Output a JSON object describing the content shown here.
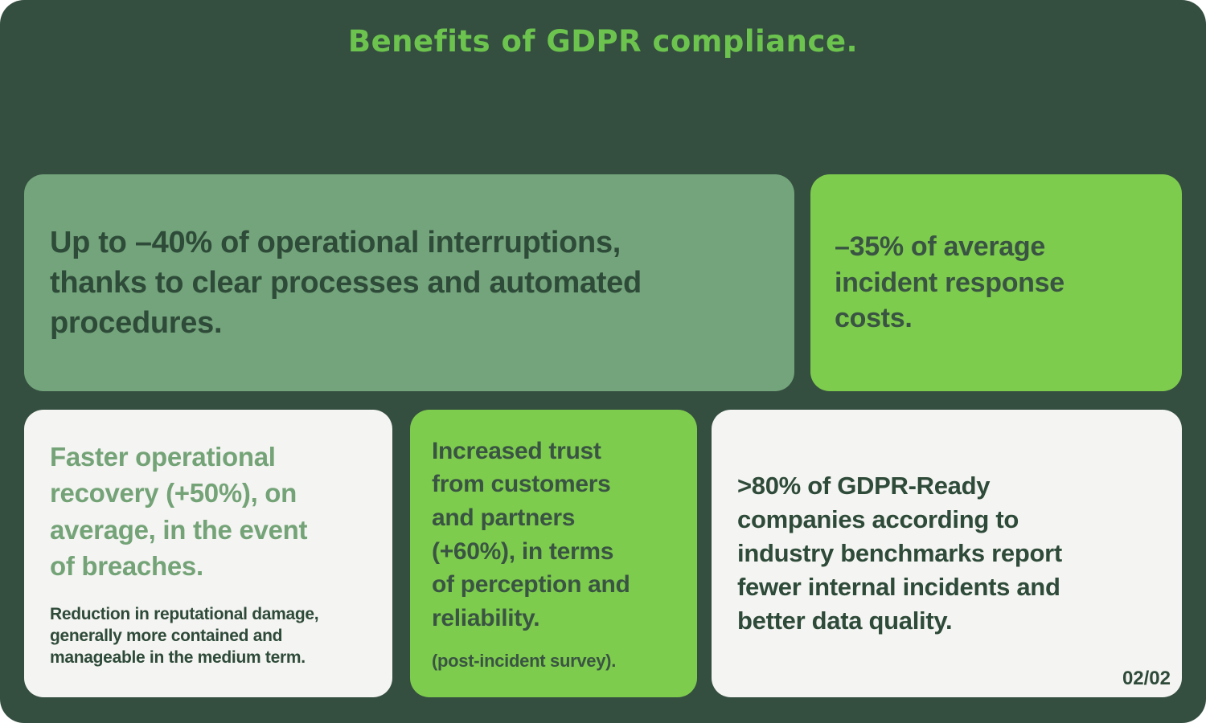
{
  "title": "Benefits of GDPR compliance.",
  "page_indicator": "02/02",
  "colors": {
    "background": "#344E40",
    "card_sage": "#73A47B",
    "card_bright_green": "#7ECC4D",
    "card_offwhite": "#F4F4F2",
    "title_green": "#6CC44E",
    "text_dark_green": "#2E4A38",
    "text_on_bright": "#3A5443",
    "heading_green": "#74A377"
  },
  "cards": {
    "interruptions": {
      "text": "Up to –40% of operational interruptions,\nthanks to clear processes and automated\nprocedures."
    },
    "incident_costs": {
      "text": "–35% of average\nincident response\ncosts."
    },
    "recovery": {
      "heading": "Faster operational\nrecovery (+50%), on\naverage, in the event\nof breaches.",
      "subtext": "Reduction in reputational damage,\ngenerally more contained and\nmanageable in the medium term."
    },
    "trust": {
      "heading": "Increased trust\nfrom customers\nand partners\n(+60%), in terms\nof perception and\nreliability.",
      "subtext": "(post-incident survey)."
    },
    "benchmarks": {
      "text": ">80% of GDPR-Ready\ncompanies according to\nindustry benchmarks report\nfewer internal incidents and\nbetter data quality."
    }
  }
}
